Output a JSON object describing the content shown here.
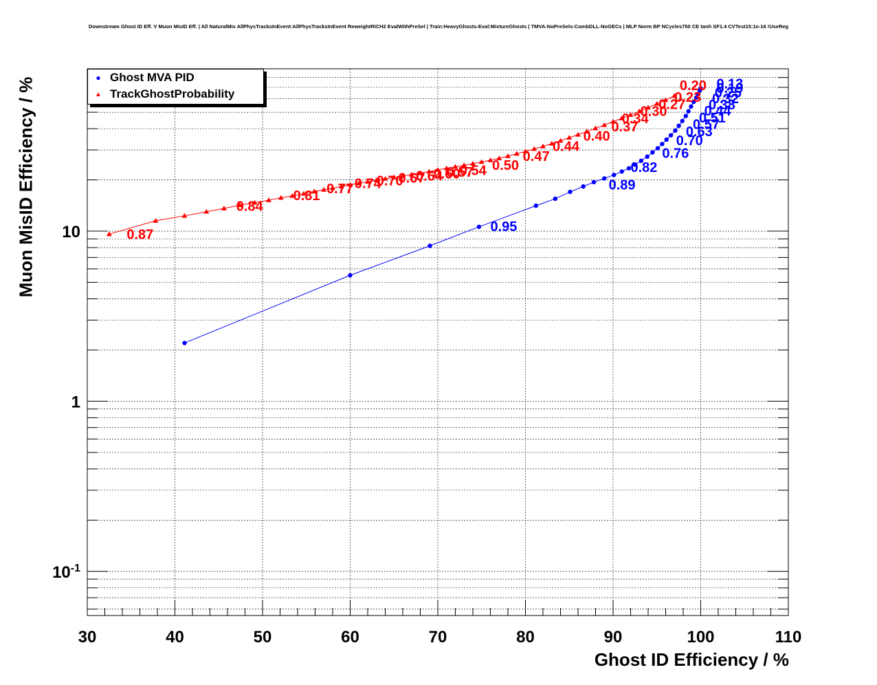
{
  "chart_data": {
    "type": "scatter",
    "title": "Downstream Ghost ID Eff. V Muon MisID Eff. | All NaturalMix AllPhysTracksInEvent:AllPhysTracksInEvent ReweightRICH2 EvalWithPreSel | Train:HeavyGhosts-Eval:MixtureGhosts | TMVA-NoPreSels-CombDLL-NoGECs | MLP Norm BP NCycles750 CE tanh SF1.4 CVTest15:1e-16 !UseReg",
    "xlabel": "Ghost ID Efficiency / %",
    "ylabel": "Muon MisID Efficiency / %",
    "xlim": [
      30,
      110
    ],
    "ylim": [
      0.055,
      90
    ],
    "ylog": true,
    "grid": true,
    "legend_position": "top-left",
    "x_tick_labels": [
      "30",
      "40",
      "50",
      "60",
      "70",
      "80",
      "90",
      "100",
      "110"
    ],
    "y_tick_labels": [
      {
        "value": 0.1,
        "base": "10",
        "exp": "-1"
      },
      {
        "value": 1,
        "base": "1",
        "exp": ""
      },
      {
        "value": 10,
        "base": "10",
        "exp": ""
      }
    ],
    "series": [
      {
        "name": "Ghost MVA PID",
        "color": "#0000ff",
        "marker": "circle",
        "x": [
          41.1,
          60.0,
          69.1,
          74.7,
          81.2,
          83.4,
          85.1,
          86.6,
          87.8,
          89.0,
          90.1,
          91.0,
          91.8,
          92.5,
          93.2,
          93.9,
          94.5,
          95.1,
          95.6,
          96.1,
          96.6,
          97.1,
          97.5,
          97.9,
          98.3,
          98.6,
          98.9,
          99.2,
          99.5,
          99.7,
          99.9,
          100.0
        ],
        "y": [
          2.2,
          5.5,
          8.2,
          10.6,
          14.1,
          15.5,
          17.0,
          18.3,
          19.4,
          20.4,
          21.4,
          22.4,
          23.4,
          24.6,
          25.9,
          27.4,
          29.0,
          30.7,
          32.5,
          34.5,
          36.6,
          39.0,
          41.6,
          44.4,
          47.5,
          50.6,
          54.0,
          57.5,
          61.0,
          64.0,
          67.0,
          69.0
        ],
        "point_labels": [
          {
            "x": 76.0,
            "y": 10.8,
            "text": "0.95"
          },
          {
            "x": 89.5,
            "y": 18.9,
            "text": "0.89"
          },
          {
            "x": 92.0,
            "y": 24.0,
            "text": "0.82"
          },
          {
            "x": 95.6,
            "y": 29.0,
            "text": "0.76"
          },
          {
            "x": 97.2,
            "y": 34.5,
            "text": "0.70"
          },
          {
            "x": 98.3,
            "y": 39.0,
            "text": "0.63"
          },
          {
            "x": 99.1,
            "y": 43.0,
            "text": "0.57"
          },
          {
            "x": 99.8,
            "y": 47.0,
            "text": "0.51"
          },
          {
            "x": 100.4,
            "y": 51.5,
            "text": "0.44"
          },
          {
            "x": 100.9,
            "y": 56.0,
            "text": "0.38"
          },
          {
            "x": 101.3,
            "y": 61.0,
            "text": "0.32"
          },
          {
            "x": 101.6,
            "y": 66.0,
            "text": "0.25"
          },
          {
            "x": 101.8,
            "y": 70.0,
            "text": "0.19"
          },
          {
            "x": 101.8,
            "y": 74.5,
            "text": "0.13"
          }
        ]
      },
      {
        "name": "TrackGhostProbability",
        "color": "#ff0000",
        "marker": "triangle",
        "x": [
          32.5,
          37.8,
          41.1,
          43.6,
          45.6,
          47.4,
          49.1,
          50.7,
          52.1,
          53.4,
          54.7,
          55.9,
          57.0,
          58.0,
          59.0,
          60.0,
          61.0,
          62.0,
          63.0,
          64.0,
          65.0,
          66.0,
          67.0,
          68.0,
          69.0,
          70.0,
          71.0,
          72.0,
          73.0,
          74.0,
          75.0,
          76.0,
          77.0,
          78.0,
          79.0,
          80.0,
          81.0,
          82.0,
          83.0,
          84.0,
          85.0,
          86.0,
          87.0,
          88.0,
          89.0,
          90.0,
          91.0,
          92.0,
          93.0,
          94.0,
          95.0,
          96.0,
          97.0
        ],
        "y": [
          9.6,
          11.5,
          12.3,
          13.0,
          13.6,
          14.2,
          14.7,
          15.2,
          15.7,
          16.1,
          16.6,
          17.1,
          17.5,
          17.9,
          18.3,
          18.7,
          19.1,
          19.5,
          19.9,
          20.3,
          20.7,
          21.1,
          21.5,
          21.9,
          22.4,
          22.9,
          23.4,
          23.9,
          24.4,
          24.9,
          25.5,
          26.1,
          26.8,
          27.6,
          28.5,
          29.4,
          30.4,
          31.5,
          32.7,
          34.0,
          35.4,
          36.9,
          38.5,
          40.2,
          42.0,
          44.0,
          46.0,
          48.2,
          50.6,
          53.2,
          56.0,
          59.0,
          62.5
        ],
        "point_labels": [
          {
            "x": 34.5,
            "y": 9.7,
            "text": "0.87"
          },
          {
            "x": 47.0,
            "y": 14.2,
            "text": "0.84"
          },
          {
            "x": 53.5,
            "y": 16.4,
            "text": "0.81"
          },
          {
            "x": 57.3,
            "y": 18.0,
            "text": "0.77"
          },
          {
            "x": 60.5,
            "y": 19.3,
            "text": "0.74"
          },
          {
            "x": 63.0,
            "y": 20.0,
            "text": "0.70"
          },
          {
            "x": 65.5,
            "y": 20.8,
            "text": "0.67"
          },
          {
            "x": 67.5,
            "y": 21.4,
            "text": "0.64"
          },
          {
            "x": 69.5,
            "y": 22.0,
            "text": "0.60"
          },
          {
            "x": 71.0,
            "y": 22.5,
            "text": "0.57"
          },
          {
            "x": 72.5,
            "y": 23.0,
            "text": "0.54"
          },
          {
            "x": 76.2,
            "y": 24.7,
            "text": "0.50"
          },
          {
            "x": 79.7,
            "y": 27.9,
            "text": "0.47"
          },
          {
            "x": 83.1,
            "y": 31.9,
            "text": "0.44"
          },
          {
            "x": 86.6,
            "y": 36.6,
            "text": "0.40"
          },
          {
            "x": 89.8,
            "y": 41.5,
            "text": "0.37"
          },
          {
            "x": 91.0,
            "y": 46.5,
            "text": "0.34"
          },
          {
            "x": 93.1,
            "y": 51.3,
            "text": "0.30"
          },
          {
            "x": 95.2,
            "y": 56.3,
            "text": "0.27"
          },
          {
            "x": 97.0,
            "y": 62.0,
            "text": "0.23"
          },
          {
            "x": 97.6,
            "y": 72.5,
            "text": "0.20"
          }
        ]
      }
    ]
  },
  "legend": {
    "items": [
      {
        "label": "Ghost MVA PID",
        "symbol": "●",
        "color": "#0000ff"
      },
      {
        "label": "TrackGhostProbability",
        "symbol": "▲",
        "color": "#ff0000"
      }
    ]
  }
}
